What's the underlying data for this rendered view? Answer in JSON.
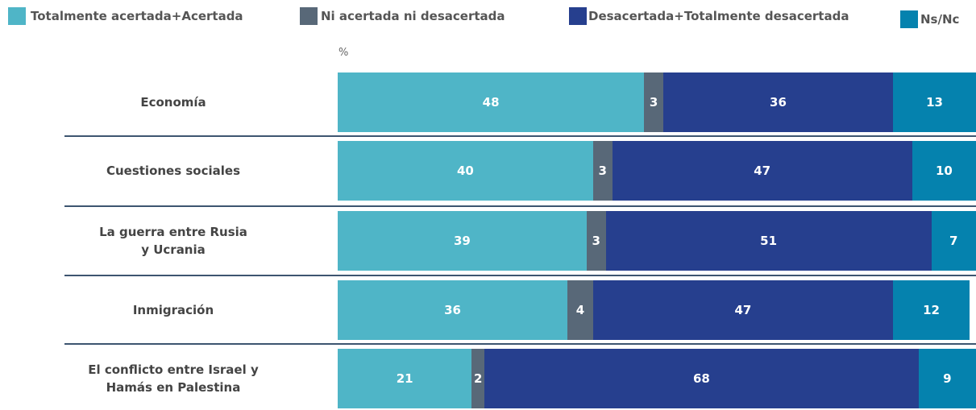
{
  "chart_data": {
    "type": "stacked-bar-horizontal",
    "unit_label": "%",
    "categories": [
      "Economía",
      "Cuestiones sociales",
      "La guerra entre Rusia\ny Ucrania",
      "Inmigración",
      "El conflicto entre Israel y\nHamás en Palestina"
    ],
    "series": [
      {
        "name": "Totalmente acertada+Acertada",
        "color": "#4fb5c7",
        "values": [
          48,
          40,
          39,
          36,
          21
        ]
      },
      {
        "name": "Ni acertada ni desacertada",
        "color": "#586878",
        "values": [
          3,
          3,
          3,
          4,
          2
        ]
      },
      {
        "name": "Desacertada+Totalmente desacertada",
        "color": "#263f8e",
        "values": [
          36,
          47,
          51,
          47,
          68
        ]
      },
      {
        "name": "Ns/Nc",
        "color": "#0582ae",
        "values": [
          13,
          10,
          7,
          12,
          9
        ]
      }
    ],
    "xlim": [
      0,
      100
    ]
  }
}
